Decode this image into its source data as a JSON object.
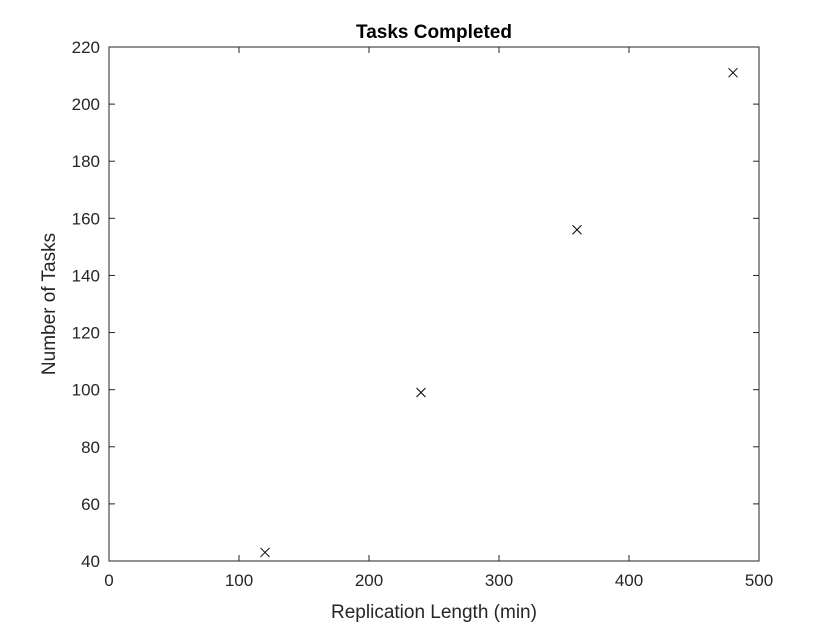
{
  "chart_data": {
    "type": "scatter",
    "title": "Tasks Completed",
    "xlabel": "Replication Length (min)",
    "ylabel": "Number of Tasks",
    "xlim": [
      0,
      500
    ],
    "ylim": [
      40,
      220
    ],
    "xticks": [
      0,
      100,
      200,
      300,
      400,
      500
    ],
    "yticks": [
      40,
      60,
      80,
      100,
      120,
      140,
      160,
      180,
      200,
      220
    ],
    "marker": "x",
    "grid": false,
    "colors": {
      "axis": "#262626",
      "marker": "#000000",
      "background": "#ffffff"
    },
    "series": [
      {
        "x": [
          120,
          240,
          360,
          480
        ],
        "y": [
          43,
          99,
          156,
          211
        ]
      }
    ]
  }
}
